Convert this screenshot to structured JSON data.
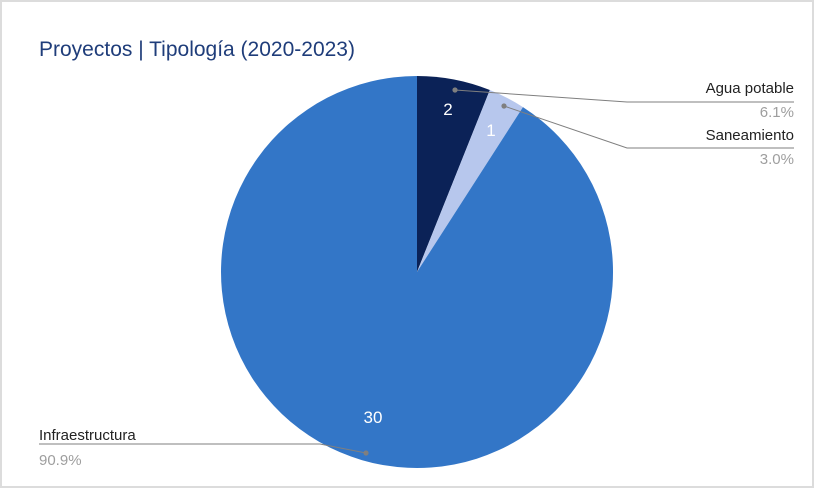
{
  "chart_data": {
    "type": "pie",
    "title": "Proyectos | Tipología (2020-2023)",
    "slices": [
      {
        "label": "Agua potable",
        "value": 2,
        "percent": "6.1%",
        "color": "#0b2257"
      },
      {
        "label": "Saneamiento",
        "value": 1,
        "percent": "3.0%",
        "color": "#b7c7ed"
      },
      {
        "label": "Infraestructura",
        "value": 30,
        "percent": "90.9%",
        "color": "#3376c7"
      }
    ],
    "start_angle": "12 o'clock",
    "direction": "clockwise",
    "label_color": "#222222",
    "percent_color": "#9e9e9e",
    "leader_color": "#7f7f7f",
    "value_label_color": "#ffffff"
  }
}
